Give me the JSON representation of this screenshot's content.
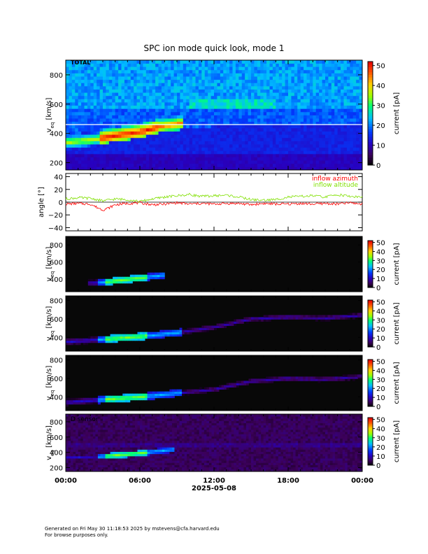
{
  "chart_data": {
    "title": "SPC ion mode quick look, mode 1",
    "date_label": "2025-05-08",
    "time_ticks": [
      "00:00",
      "06:00",
      "12:00",
      "18:00",
      "00:00"
    ],
    "time_range_hours": [
      0,
      24
    ],
    "main_panel": {
      "type": "heatmap",
      "label": "TOTAL",
      "ylabel": "v_eq [km/s]",
      "ylabel_main": "v",
      "ylabel_sub": "eq",
      "ylabel_unit": " [km/s]",
      "ylim": [
        150,
        900
      ],
      "yticks": [
        "200",
        "400",
        "600",
        "800"
      ],
      "ytick_values": [
        200,
        400,
        600,
        800
      ],
      "hline_value": 460,
      "colorbar": {
        "label": "current [pA]",
        "range": [
          0,
          52
        ],
        "ticks": [
          "0",
          "10",
          "20",
          "30",
          "40",
          "50"
        ],
        "tick_values": [
          0,
          10,
          20,
          30,
          40,
          50
        ]
      }
    },
    "angle_panel": {
      "type": "line",
      "ylabel": "angle [°]",
      "ylim": [
        -45,
        45
      ],
      "yticks": [
        "40",
        "20",
        "0",
        "−20",
        "−40"
      ],
      "ytick_values": [
        40,
        20,
        0,
        -20,
        -40
      ],
      "series": [
        {
          "name": "inflow azimuth",
          "color": "#ff0000",
          "x": [
            0,
            1,
            2,
            2.5,
            3,
            3.5,
            4,
            5,
            6,
            7,
            8,
            9,
            10,
            11,
            12,
            13,
            14,
            15,
            16,
            17,
            18,
            19,
            20,
            21,
            22,
            23,
            24
          ],
          "y": [
            -3,
            -2,
            -3,
            -8,
            -12,
            -9,
            -4,
            -2,
            -1,
            -4,
            -3,
            -1,
            -3,
            -2,
            -3,
            -2,
            -2,
            -4,
            -2,
            -3,
            -3,
            -2,
            -3,
            -2,
            -3,
            -1,
            -3
          ]
        },
        {
          "name": "inflow altitude",
          "color": "#80e000",
          "x": [
            0,
            1,
            2,
            3,
            4,
            5,
            6,
            7,
            8,
            9,
            10,
            11,
            12,
            13,
            14,
            15,
            16,
            17,
            18,
            19,
            20,
            21,
            22,
            23,
            24
          ],
          "y": [
            5,
            7,
            6,
            2,
            5,
            4,
            1,
            5,
            8,
            10,
            12,
            9,
            10,
            11,
            8,
            4,
            3,
            4,
            8,
            9,
            10,
            8,
            12,
            9,
            8
          ]
        }
      ]
    },
    "sensor_panels": [
      {
        "label": "",
        "ylim": [
          250,
          900
        ],
        "yticks": [
          "400",
          "600",
          "800"
        ],
        "ytick_values": [
          400,
          600,
          800
        ],
        "ridge": [
          {
            "x": 1.8,
            "v": 350
          },
          {
            "x": 3,
            "v": 360
          },
          {
            "x": 5,
            "v": 395
          },
          {
            "x": 7,
            "v": 430
          },
          {
            "x": 8.1,
            "v": 450
          }
        ]
      },
      {
        "label": "",
        "ylim": [
          250,
          850
        ],
        "yticks": [
          "400",
          "600",
          "800"
        ],
        "ytick_values": [
          400,
          600,
          800
        ],
        "ridge": [
          {
            "x": 0,
            "v": 350
          },
          {
            "x": 3,
            "v": 380
          },
          {
            "x": 6,
            "v": 410
          },
          {
            "x": 9,
            "v": 450
          },
          {
            "x": 12,
            "v": 510
          },
          {
            "x": 15,
            "v": 600
          },
          {
            "x": 18,
            "v": 620
          },
          {
            "x": 21,
            "v": 610
          },
          {
            "x": 24,
            "v": 640
          }
        ]
      },
      {
        "label": "",
        "ylim": [
          250,
          850
        ],
        "yticks": [
          "400",
          "600",
          "800"
        ],
        "ytick_values": [
          400,
          600,
          800
        ],
        "ridge": [
          {
            "x": 0,
            "v": 340
          },
          {
            "x": 3,
            "v": 370
          },
          {
            "x": 6,
            "v": 400
          },
          {
            "x": 9,
            "v": 440
          },
          {
            "x": 12,
            "v": 480
          },
          {
            "x": 15,
            "v": 570
          },
          {
            "x": 18,
            "v": 600
          },
          {
            "x": 21,
            "v": 590
          },
          {
            "x": 24,
            "v": 620
          }
        ]
      },
      {
        "label": "D sensor",
        "ylim": [
          150,
          900
        ],
        "yticks": [
          "200",
          "400",
          "600",
          "800"
        ],
        "ytick_values": [
          200,
          400,
          600,
          800
        ],
        "ridge": [
          {
            "x": 0,
            "v": 330
          },
          {
            "x": 3,
            "v": 350
          },
          {
            "x": 6,
            "v": 390
          },
          {
            "x": 8.7,
            "v": 440
          }
        ]
      }
    ],
    "sensor_ylabel_main": "v",
    "sensor_ylabel_sub": "eq",
    "sensor_ylabel_unit": " [km/s]",
    "sensor_colorbar": {
      "label": "current [pA]",
      "range": [
        0,
        52
      ],
      "ticks": [
        "0",
        "10",
        "20",
        "30",
        "40",
        "50"
      ],
      "tick_values": [
        0,
        10,
        20,
        30,
        40,
        50
      ]
    }
  },
  "footer": {
    "line1": "Generated on Fri May 30 11:18:53 2025 by mstevens@cfa.harvard.edu",
    "line2": "For browse purposes only."
  }
}
